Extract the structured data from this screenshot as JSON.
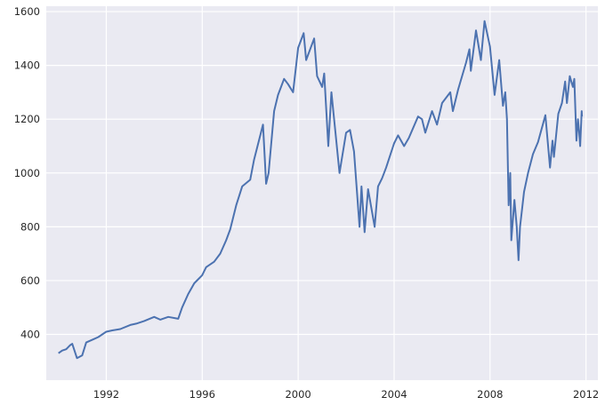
{
  "chart_data": {
    "type": "line",
    "title": "",
    "xlabel": "",
    "ylabel": "",
    "grid": true,
    "style": "seaborn-darkgrid",
    "colors": {
      "background": "#eaeaf2",
      "grid": "#ffffff",
      "line": "#4c72b0",
      "text": "#262626"
    },
    "xlim": [
      "1989-07-01",
      "2012-06-30"
    ],
    "ylim": [
      230,
      1620
    ],
    "x_ticks": [
      "1992",
      "1996",
      "2000",
      "2004",
      "2008",
      "2012"
    ],
    "y_ticks": [
      400,
      600,
      800,
      1000,
      1200,
      1400,
      1600
    ],
    "series": [
      {
        "name": "",
        "x": [
          "1990-01-02",
          "1990-03-01",
          "1990-05-01",
          "1990-07-01",
          "1990-08-01",
          "1990-10-11",
          "1990-12-31",
          "1991-03-01",
          "1991-06-01",
          "1991-09-01",
          "1991-12-31",
          "1992-04-01",
          "1992-08-01",
          "1992-12-31",
          "1993-04-01",
          "1993-08-01",
          "1993-12-31",
          "1994-04-01",
          "1994-08-01",
          "1994-12-31",
          "1995-03-01",
          "1995-06-01",
          "1995-09-01",
          "1995-12-31",
          "1996-03-01",
          "1996-07-01",
          "1996-10-01",
          "1996-12-31",
          "1997-03-01",
          "1997-06-01",
          "1997-09-01",
          "1997-12-31",
          "1998-03-01",
          "1998-07-15",
          "1998-08-31",
          "1998-10-08",
          "1998-12-31",
          "1999-03-01",
          "1999-06-01",
          "1999-08-01",
          "1999-10-15",
          "1999-12-31",
          "2000-03-24",
          "2000-05-01",
          "2000-09-01",
          "2000-10-15",
          "2000-12-31",
          "2001-01-31",
          "2001-04-04",
          "2001-05-21",
          "2001-09-21",
          "2001-12-31",
          "2002-03-01",
          "2002-05-01",
          "2002-07-23",
          "2002-08-22",
          "2002-10-09",
          "2002-12-01",
          "2003-03-11",
          "2003-05-01",
          "2003-07-01",
          "2003-09-01",
          "2003-12-31",
          "2004-03-01",
          "2004-06-01",
          "2004-08-12",
          "2004-12-31",
          "2005-03-01",
          "2005-04-20",
          "2005-08-01",
          "2005-10-15",
          "2005-12-31",
          "2006-05-05",
          "2006-06-13",
          "2006-09-01",
          "2006-12-31",
          "2007-02-20",
          "2007-03-14",
          "2007-06-01",
          "2007-08-15",
          "2007-10-09",
          "2007-12-31",
          "2008-03-10",
          "2008-05-19",
          "2008-07-15",
          "2008-08-20",
          "2008-09-15",
          "2008-10-10",
          "2008-11-04",
          "2008-11-20",
          "2009-01-06",
          "2009-02-10",
          "2009-03-09",
          "2009-04-01",
          "2009-06-01",
          "2009-08-01",
          "2009-10-15",
          "2009-12-31",
          "2010-04-23",
          "2010-07-02",
          "2010-08-09",
          "2010-08-31",
          "2010-11-05",
          "2010-12-31",
          "2011-02-18",
          "2011-03-16",
          "2011-04-29",
          "2011-06-15",
          "2011-07-07",
          "2011-08-08",
          "2011-08-31",
          "2011-09-20",
          "2011-10-04",
          "2011-10-27",
          "2011-11-01"
        ],
        "values": [
          330,
          340,
          345,
          360,
          365,
          312,
          322,
          370,
          380,
          390,
          410,
          415,
          420,
          435,
          440,
          450,
          465,
          455,
          465,
          458,
          500,
          550,
          590,
          620,
          650,
          670,
          700,
          750,
          790,
          880,
          950,
          975,
          1050,
          1180,
          960,
          1000,
          1230,
          1290,
          1350,
          1330,
          1300,
          1465,
          1520,
          1420,
          1500,
          1360,
          1320,
          1370,
          1100,
          1300,
          1000,
          1150,
          1160,
          1080,
          800,
          950,
          780,
          940,
          800,
          950,
          980,
          1020,
          1110,
          1140,
          1100,
          1130,
          1210,
          1200,
          1150,
          1230,
          1180,
          1260,
          1300,
          1230,
          1310,
          1410,
          1460,
          1380,
          1530,
          1420,
          1565,
          1470,
          1290,
          1420,
          1250,
          1300,
          1200,
          880,
          1000,
          750,
          900,
          800,
          676,
          800,
          930,
          1000,
          1070,
          1115,
          1215,
          1020,
          1120,
          1060,
          1220,
          1260,
          1340,
          1260,
          1360,
          1320,
          1350,
          1120,
          1200,
          1150,
          1100,
          1230,
          1210
        ]
      }
    ]
  }
}
